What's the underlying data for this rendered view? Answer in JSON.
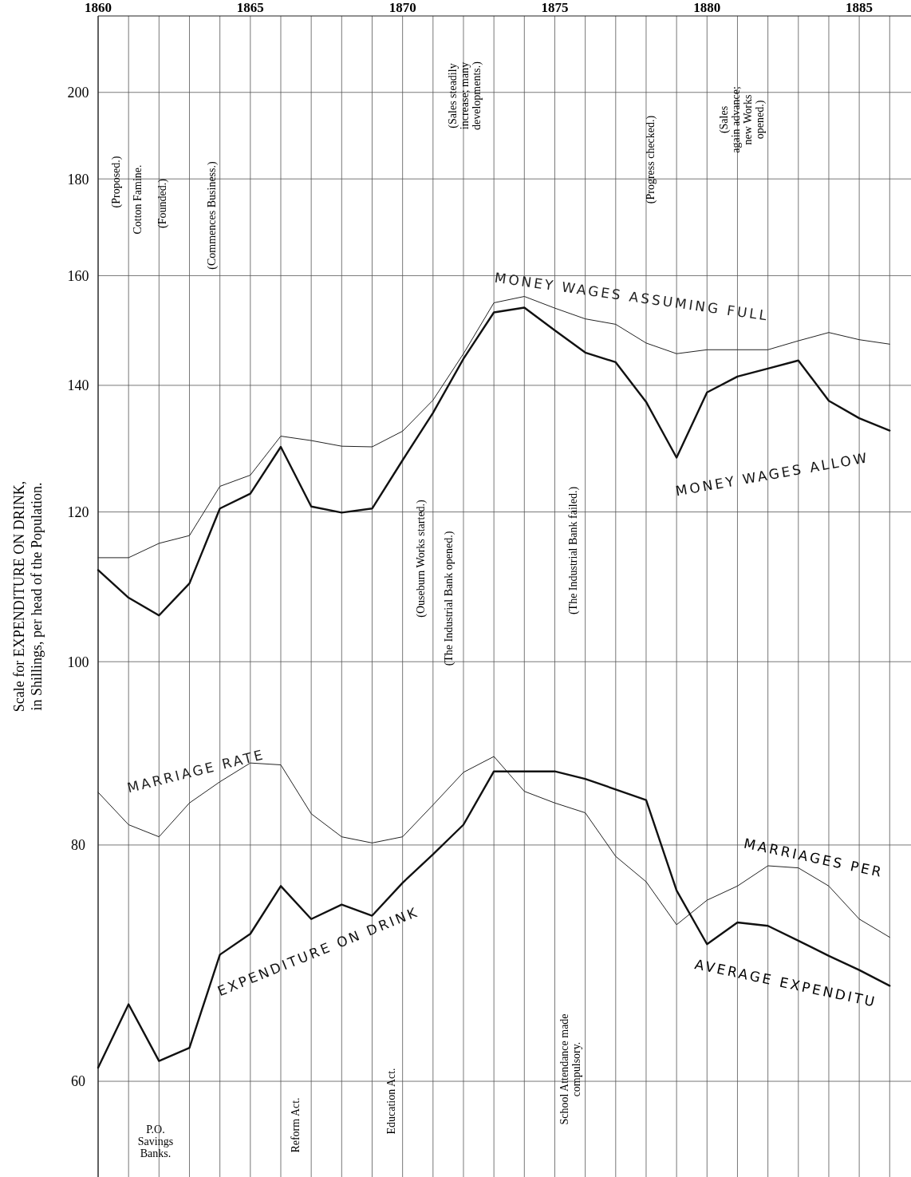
{
  "chart_data": {
    "type": "line",
    "ylabel": "Scale for EXPENDITURE ON DRINK,\nin Shillings, per head of the Population.",
    "log": true,
    "grid": true,
    "x": [
      1860,
      1861,
      1862,
      1863,
      1864,
      1865,
      1866,
      1867,
      1868,
      1869,
      1870,
      1871,
      1872,
      1873,
      1874,
      1875,
      1876,
      1877,
      1878,
      1879,
      1880,
      1881,
      1882,
      1883,
      1884,
      1885,
      1886
    ],
    "xlim": [
      1860,
      1886.7
    ],
    "xticks": [
      1860,
      {
        "value": 1861,
        "label": null
      },
      {
        "value": 1862,
        "label": null
      },
      {
        "value": 1863,
        "label": null
      },
      {
        "value": 1864,
        "label": null
      },
      1865,
      {
        "value": 1866,
        "label": null
      },
      {
        "value": 1867,
        "label": null
      },
      {
        "value": 1868,
        "label": null
      },
      {
        "value": 1869,
        "label": null
      },
      1870,
      {
        "value": 1871,
        "label": null
      },
      {
        "value": 1872,
        "label": null
      },
      {
        "value": 1873,
        "label": null
      },
      {
        "value": 1874,
        "label": null
      },
      1875,
      {
        "value": 1876,
        "label": null
      },
      {
        "value": 1877,
        "label": null
      },
      {
        "value": 1878,
        "label": null
      },
      {
        "value": 1879,
        "label": null
      },
      1880,
      {
        "value": 1881,
        "label": null
      },
      {
        "value": 1882,
        "label": null
      },
      {
        "value": 1883,
        "label": null
      },
      {
        "value": 1884,
        "label": null
      },
      1885,
      {
        "value": 1886,
        "label": null
      }
    ],
    "ylim": [
      53.4,
      219.5
    ],
    "yticks": [
      60,
      80,
      100,
      120,
      140,
      160,
      180,
      200
    ],
    "series": [
      {
        "name": "MONEY WAGES ASSUMING FULL",
        "color": "#222222",
        "values": [
          113.5,
          113.5,
          115.5,
          116.6,
          123.8,
          125.5,
          131.6,
          130.9,
          130.0,
          129.9,
          132.4,
          137.5,
          145.5,
          154.8,
          156,
          153.8,
          151.8,
          150.8,
          147.4,
          145.5,
          146.2,
          146.2,
          146.2,
          147.8,
          149.3,
          148,
          147.2
        ]
      },
      {
        "name": "MONEY WAGES ALLOW",
        "color": "#111111",
        "values": [
          111.8,
          108.1,
          105.8,
          110.0,
          120.5,
          122.7,
          129.9,
          120.8,
          119.9,
          120.5,
          127.8,
          135.4,
          144.6,
          153.0,
          153.9,
          149.7,
          145.7,
          144,
          137.2,
          128.2,
          138.8,
          141.5,
          142.9,
          144.3,
          137.4,
          134.5,
          132.5
        ]
      },
      {
        "name": "MARRIAGE RATE",
        "color": "#222222",
        "values": [
          85.3,
          82.0,
          80.8,
          84.2,
          86.4,
          88.4,
          88.2,
          83.1,
          80.8,
          80.2,
          80.8,
          84.0,
          87.4,
          89.1,
          85.4,
          84.2,
          83.2,
          78.9,
          76.5,
          72.6,
          74.8,
          76.1,
          78.0,
          77.8,
          76.1,
          73.1,
          71.5
        ]
      },
      {
        "name": "EXPENDITURE ON DRINK",
        "color": "#111111",
        "values": [
          61.0,
          65.9,
          61.5,
          62.5,
          70.0,
          71.8,
          76.1,
          73.1,
          74.4,
          73.4,
          76.4,
          79.1,
          82.0,
          87.5,
          87.5,
          87.5,
          86.7,
          85.6,
          84.5,
          75.7,
          70.9,
          72.8,
          72.5,
          71.2,
          69.9,
          68.7,
          67.4
        ]
      }
    ],
    "annotations": [
      "(Proposed.)",
      "Cotton Famine.",
      "(Founded.)",
      "(Commences Business.)",
      "(Sales steadily\nincrease; many\ndevelopments.)",
      "(Progress checked.)",
      "(Sales\nagain advance;\nnew Works\nopened.)",
      "(Ouseburn Works started.)",
      "(The Industrial Bank opened.)",
      "(The Industrial Bank failed.)",
      "P.O.\nSavings\nBanks.",
      "Reform Act.",
      "Education Act.",
      "School Attendance made\ncompulsory.",
      "MARRIAGES PER",
      "AVERAGE EXPENDITU"
    ]
  }
}
